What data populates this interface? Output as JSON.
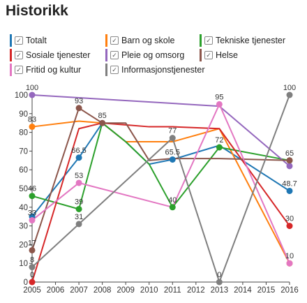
{
  "title": "Historikk",
  "check_glyph": "✓",
  "legend": [
    {
      "label": "Totalt",
      "color": "#1f77b4"
    },
    {
      "label": "Barn og skole",
      "color": "#ff7f0e"
    },
    {
      "label": "Tekniske tjenester",
      "color": "#2ca02c"
    },
    {
      "label": "Sosiale tjenester",
      "color": "#d62728"
    },
    {
      "label": "Pleie og omsorg",
      "color": "#9467bd"
    },
    {
      "label": "Helse",
      "color": "#8c564b"
    },
    {
      "label": "Fritid og kultur",
      "color": "#e377c2"
    },
    {
      "label": "Informasjonstjenester",
      "color": "#7f7f7f"
    }
  ],
  "chart_data": {
    "type": "line",
    "x": [
      2005,
      2007,
      2008,
      2009,
      2010,
      2011,
      2013,
      2016
    ],
    "xticks": [
      2005,
      2006,
      2007,
      2008,
      2009,
      2010,
      2011,
      2012,
      2013,
      2014,
      2015,
      2016
    ],
    "ylim": [
      0,
      100
    ],
    "yticks": [
      0,
      10,
      20,
      30,
      40,
      50,
      60,
      70,
      80,
      90,
      100
    ],
    "series": [
      {
        "name": "Totalt",
        "color": "#1f77b4",
        "values": [
          35,
          66.5,
          85,
          75,
          63,
          65.5,
          73,
          48.7
        ],
        "labels": [
          "",
          "66.5",
          "",
          "",
          "",
          "65.5",
          "",
          "48.7"
        ]
      },
      {
        "name": "Barn og skole",
        "color": "#ff7f0e",
        "values": [
          83,
          86,
          85,
          75,
          75,
          75,
          82,
          10
        ],
        "labels": [
          "83",
          "",
          "",
          "",
          "",
          "",
          "",
          ""
        ]
      },
      {
        "name": "Tekniske tjenester",
        "color": "#2ca02c",
        "values": [
          46,
          39,
          85,
          75,
          63,
          40,
          72,
          65
        ],
        "labels": [
          "46",
          "39",
          "",
          "",
          "",
          "40",
          "72",
          ""
        ]
      },
      {
        "name": "Sosiale tjenester",
        "color": "#d62728",
        "values": [
          0,
          82,
          85,
          84,
          83,
          83,
          82,
          30
        ],
        "labels": [
          "0",
          "",
          "",
          "",
          "",
          "",
          "",
          "30"
        ]
      },
      {
        "name": "Pleie og omsorg",
        "color": "#9467bd",
        "values": [
          100,
          null,
          null,
          null,
          null,
          null,
          94,
          62
        ],
        "labels": [
          "100",
          "",
          "",
          "",
          "",
          "",
          "",
          ""
        ]
      },
      {
        "name": "Helse",
        "color": "#8c564b",
        "values": [
          17,
          93,
          85,
          85,
          65,
          66,
          66,
          65
        ],
        "labels": [
          "17",
          "93",
          "85",
          "",
          "",
          "",
          "",
          "65"
        ]
      },
      {
        "name": "Fritid og kultur",
        "color": "#e377c2",
        "values": [
          33,
          53,
          null,
          null,
          null,
          40,
          95,
          10
        ],
        "labels": [
          "33",
          "53",
          "",
          "",
          "",
          "",
          "95",
          "10"
        ]
      },
      {
        "name": "Informasjonstjenester",
        "color": "#7f7f7f",
        "values": [
          8,
          31,
          null,
          null,
          null,
          77,
          0,
          100
        ],
        "labels": [
          "8",
          "31",
          "",
          "",
          "",
          "77",
          "0",
          "100"
        ]
      }
    ]
  }
}
